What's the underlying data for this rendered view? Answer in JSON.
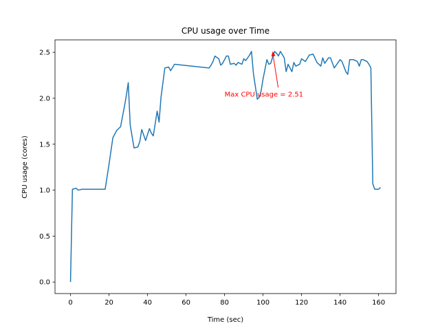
{
  "chart_data": {
    "type": "line",
    "title": "CPU usage over Time",
    "xlabel": "Time (sec)",
    "ylabel": "CPU usage (cores)",
    "xlim": [
      -8.05,
      169.05
    ],
    "ylim": [
      -0.1255,
      2.6355
    ],
    "xticks": [
      0,
      20,
      40,
      60,
      80,
      100,
      120,
      140,
      160
    ],
    "xtick_labels": [
      "0",
      "20",
      "40",
      "60",
      "80",
      "100",
      "120",
      "140",
      "160"
    ],
    "yticks": [
      0.0,
      0.5,
      1.0,
      1.5,
      2.0,
      2.5
    ],
    "ytick_labels": [
      "0.0",
      "0.5",
      "1.0",
      "1.5",
      "2.0",
      "2.5"
    ],
    "grid": false,
    "line_color": "#1f77b4",
    "annotation_color": "#ff0000",
    "annotation": {
      "text": "Max CPU usage = 2.51",
      "xy": [
        105,
        2.51
      ],
      "xytext": [
        80,
        2.02
      ]
    },
    "series": [
      {
        "x": [
          0,
          1,
          3,
          4,
          6,
          8,
          10,
          12,
          14,
          16,
          18,
          20,
          22,
          24,
          26,
          28,
          29,
          30,
          31,
          33,
          35,
          36,
          37,
          39,
          41,
          42,
          43,
          45,
          46,
          47,
          49,
          51,
          52,
          54,
          72,
          73,
          74,
          75,
          77,
          78,
          79,
          81,
          82,
          83,
          85,
          86,
          87,
          89,
          90,
          91,
          93,
          94,
          95,
          97,
          98,
          99,
          100,
          102,
          103,
          104,
          105,
          106,
          107,
          108,
          109,
          111,
          112,
          113,
          115,
          116,
          117,
          119,
          120,
          122,
          124,
          126,
          128,
          130,
          131,
          132,
          134,
          135,
          137,
          139,
          140,
          141,
          143,
          144,
          145,
          147,
          149,
          150,
          151,
          152,
          154,
          155,
          156,
          157,
          158,
          160,
          161
        ],
        "y": [
          0.0,
          1.01,
          1.02,
          1.0,
          1.01,
          1.01,
          1.01,
          1.01,
          1.01,
          1.01,
          1.01,
          1.28,
          1.57,
          1.65,
          1.69,
          1.91,
          2.03,
          2.17,
          1.71,
          1.46,
          1.47,
          1.53,
          1.66,
          1.54,
          1.67,
          1.62,
          1.59,
          1.86,
          1.74,
          2.01,
          2.33,
          2.34,
          2.3,
          2.37,
          2.33,
          2.36,
          2.4,
          2.46,
          2.43,
          2.36,
          2.38,
          2.46,
          2.46,
          2.37,
          2.38,
          2.36,
          2.39,
          2.37,
          2.43,
          2.41,
          2.47,
          2.51,
          2.27,
          1.99,
          2.01,
          2.08,
          2.21,
          2.42,
          2.37,
          2.38,
          2.45,
          2.51,
          2.49,
          2.46,
          2.51,
          2.44,
          2.29,
          2.37,
          2.29,
          2.39,
          2.35,
          2.37,
          2.43,
          2.4,
          2.47,
          2.48,
          2.39,
          2.35,
          2.44,
          2.38,
          2.44,
          2.44,
          2.33,
          2.39,
          2.42,
          2.4,
          2.29,
          2.26,
          2.42,
          2.42,
          2.4,
          2.35,
          2.42,
          2.42,
          2.4,
          2.37,
          2.33,
          1.07,
          1.01,
          1.01,
          1.03
        ]
      }
    ]
  }
}
